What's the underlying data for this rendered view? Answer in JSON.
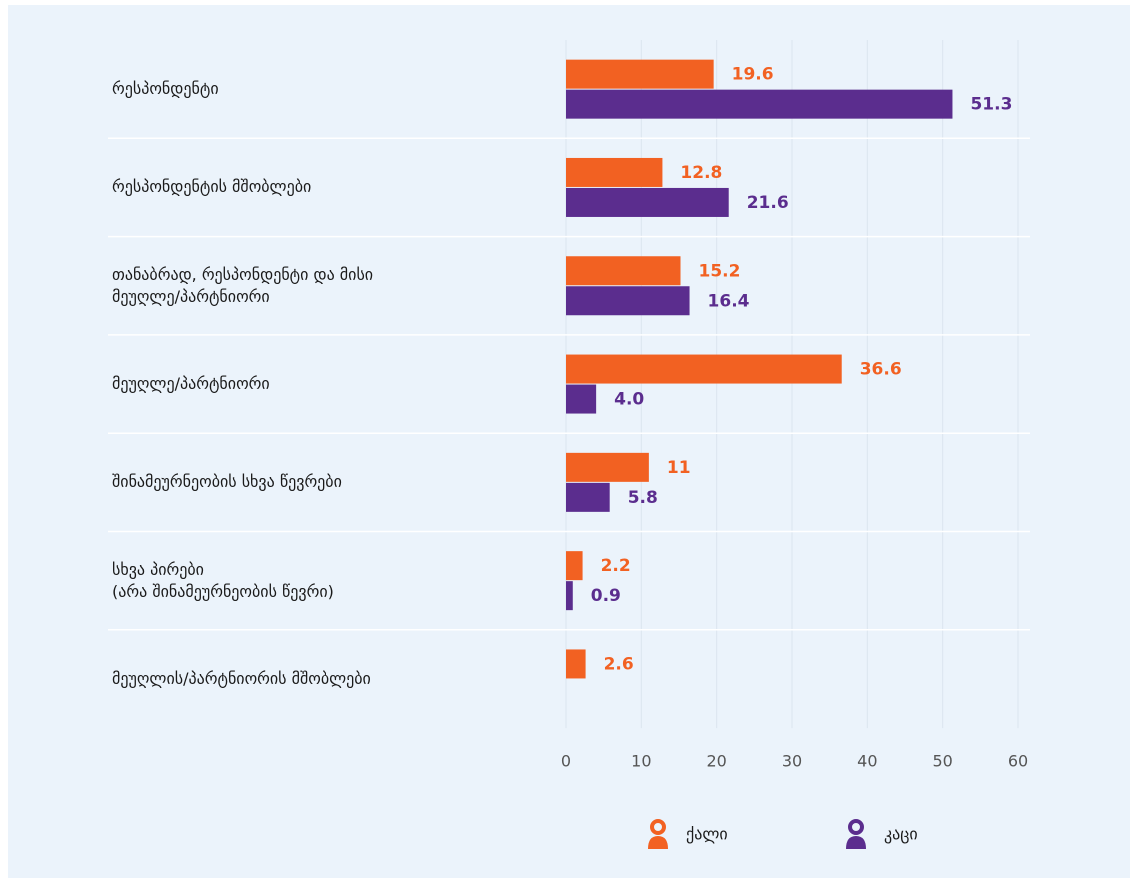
{
  "chart_data": {
    "type": "bar",
    "orientation": "horizontal",
    "categories": [
      "რესპონდენტი",
      "რესპონდენტის მშობლები",
      "თანაბრად, რესპონდენტი და მისი\nმეუღლე/პარტნიორი",
      "მეუღლე/პარტნიორი",
      "შინამეურნეობის სხვა წევრები",
      "სხვა პირები\n(არა შინამეურნეობის წევრი)",
      "მეუღლის/პარტნიორის მშობლები"
    ],
    "series": [
      {
        "name": "ქალი",
        "color": "#f26122",
        "values": [
          19.6,
          12.8,
          15.2,
          36.6,
          11,
          2.2,
          2.6
        ],
        "value_labels": [
          "19.6",
          "12.8",
          "15.2",
          "36.6",
          "11",
          "2.2",
          "2.6"
        ]
      },
      {
        "name": "კაცი",
        "color": "#5b2d8e",
        "values": [
          51.3,
          21.6,
          16.4,
          4,
          5.8,
          0.9,
          null
        ],
        "value_labels": [
          "51.3",
          "21.6",
          "16.4",
          "4.0",
          "5.8",
          "0.9",
          null
        ]
      }
    ],
    "xlim": [
      0,
      60
    ],
    "xticks": [
      0,
      10,
      20,
      30,
      40,
      50,
      60
    ],
    "grid": true,
    "legend": "bottom"
  }
}
